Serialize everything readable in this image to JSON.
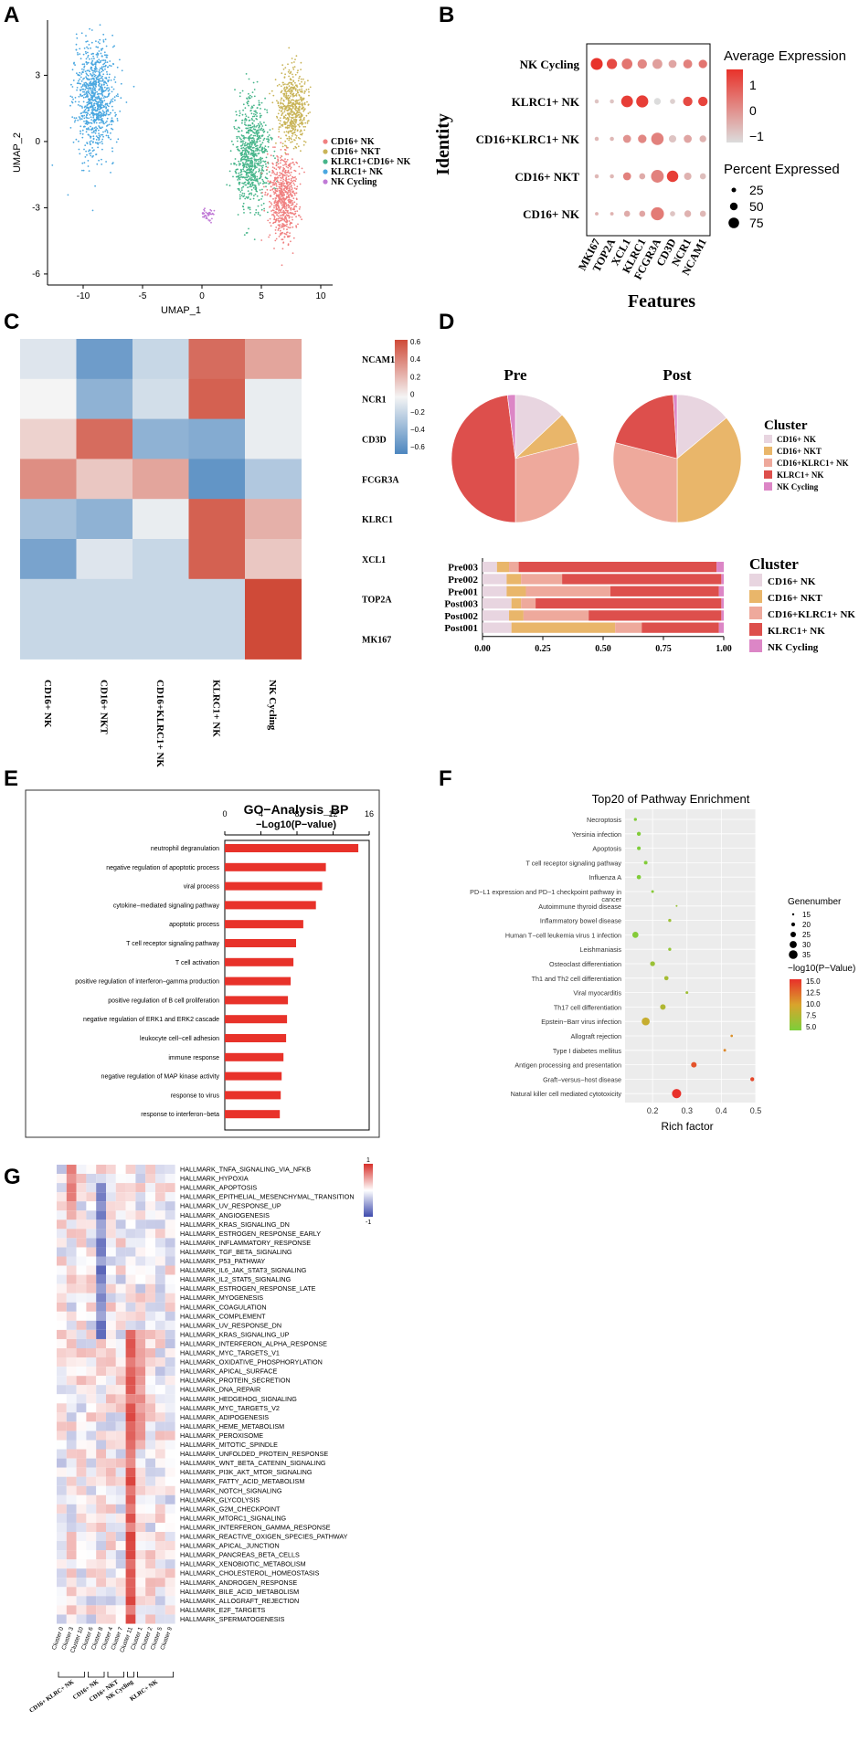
{
  "panel_letters": [
    "A",
    "B",
    "C",
    "D",
    "E",
    "F",
    "G"
  ],
  "colors": {
    "nk_cd16": "#f08080",
    "nkt_cd16": "#c9b458",
    "klrc1_cd16": "#46b58a",
    "klrc1": "#4aa7e0",
    "cycling": "#c07ad6",
    "pie_cd16nk": "#e8d5e0",
    "pie_nkt": "#e9b66a",
    "pie_cd16klrc1": "#eea99c",
    "pie_klrc1": "#dd4f4c",
    "pie_cycling": "#dc86c6",
    "bar_e": "#e8322a",
    "heat_high": "#cf4a38",
    "heat_low": "#4c86bf"
  },
  "chart_data": [
    {
      "panel": "A",
      "type": "scatter",
      "title": "",
      "xlabel": "UMAP_1",
      "ylabel": "UMAP_2",
      "xticks": [
        -10,
        -5,
        0,
        5,
        10
      ],
      "yticks": [
        -6,
        -3,
        0,
        3
      ],
      "xlim": [
        -13,
        11
      ],
      "ylim": [
        -6.5,
        5.5
      ],
      "legend": [
        "CD16+ NK",
        "CD16+ NKT",
        "KLRC1+CD16+ NK",
        "KLRC1+ NK",
        "NK Cycling"
      ],
      "clusters": [
        {
          "name": "KLRC1+ NK",
          "center": [
            -9,
            2.0
          ],
          "spread": [
            1.4,
            2.3
          ]
        },
        {
          "name": "KLRC1+CD16+ NK",
          "center": [
            4.2,
            -0.6
          ],
          "spread": [
            1.2,
            2.2
          ]
        },
        {
          "name": "CD16+ NKT",
          "center": [
            7.6,
            1.5
          ],
          "spread": [
            1.0,
            1.5
          ]
        },
        {
          "name": "CD16+ NK",
          "center": [
            6.8,
            -2.6
          ],
          "spread": [
            1.0,
            1.8
          ]
        },
        {
          "name": "NK Cycling",
          "center": [
            0.5,
            -3.3
          ],
          "spread": [
            0.4,
            0.25
          ]
        }
      ]
    },
    {
      "panel": "B",
      "type": "scatter",
      "subtype": "dotplot",
      "xlabel": "Features",
      "ylabel": "Identity",
      "features": [
        "MKI67",
        "TOP2A",
        "XCL1",
        "KLRC1",
        "FCGR3A",
        "CD3D",
        "NCR1",
        "NCAM1"
      ],
      "identities": [
        "NK Cycling",
        "KLRC1+ NK",
        "CD16+KLRC1+ NK",
        "CD16+ NKT",
        "CD16+ NK"
      ],
      "expression": [
        [
          1.6,
          1.2,
          0.5,
          0.2,
          -0.2,
          -0.3,
          0.3,
          0.5
        ],
        [
          -0.8,
          -0.8,
          1.4,
          1.4,
          -1.2,
          -1.0,
          1.2,
          1.3
        ],
        [
          -0.6,
          -0.6,
          0.0,
          0.2,
          0.3,
          -0.8,
          -0.3,
          -0.5
        ],
        [
          -0.6,
          -0.6,
          0.3,
          -0.4,
          0.3,
          1.4,
          -0.5,
          -0.7
        ],
        [
          -0.5,
          -0.5,
          -0.4,
          -0.3,
          0.4,
          -0.8,
          -0.5,
          -0.6
        ]
      ],
      "pct": [
        [
          78,
          55,
          60,
          45,
          50,
          30,
          40,
          35
        ],
        [
          5,
          5,
          75,
          80,
          20,
          10,
          45,
          45
        ],
        [
          5,
          5,
          30,
          35,
          85,
          25,
          30,
          20
        ],
        [
          5,
          5,
          30,
          15,
          90,
          70,
          25,
          15
        ],
        [
          3,
          3,
          15,
          15,
          95,
          10,
          20,
          15
        ]
      ],
      "color_legend_title": "Average Expression",
      "color_ticks": [
        "1",
        "0",
        "−1"
      ],
      "size_legend_title": "Percent Expressed",
      "size_ticks": [
        "25",
        "50",
        "75"
      ]
    },
    {
      "panel": "C",
      "type": "heatmap",
      "columns": [
        "CD16+ NK",
        "CD16+ NKT",
        "CD16+KLRC1+ NK",
        "KLRC1+ NK",
        "NK Cycling"
      ],
      "rows": [
        "NCAM1",
        "NCR1",
        "CD3D",
        "FCGR3A",
        "KLRC1",
        "XCL1",
        "TOP2A",
        "MK167"
      ],
      "values": [
        [
          -0.1,
          -0.6,
          -0.2,
          0.6,
          0.35
        ],
        [
          0.0,
          -0.45,
          -0.15,
          0.65,
          -0.05
        ],
        [
          0.15,
          0.6,
          -0.45,
          -0.5,
          -0.05
        ],
        [
          0.45,
          0.2,
          0.35,
          -0.65,
          -0.3
        ],
        [
          -0.35,
          -0.45,
          -0.05,
          0.65,
          0.3
        ],
        [
          -0.55,
          -0.1,
          -0.2,
          0.65,
          0.2
        ],
        [
          -0.2,
          -0.2,
          -0.2,
          -0.2,
          0.75
        ],
        [
          -0.2,
          -0.2,
          -0.2,
          -0.2,
          0.75
        ]
      ],
      "scale_ticks": [
        "0.6",
        "0.4",
        "0.2",
        "0",
        "−0.2",
        "−0.4",
        "−0.6"
      ]
    },
    {
      "panel": "D-pie",
      "type": "pie",
      "title": "Pre / Post",
      "legend_title": "Cluster",
      "series": [
        {
          "name": "Pre",
          "labels": [
            "CD16+ NK",
            "CD16+ NKT",
            "CD16+KLRC1+ NK",
            "KLRC1+ NK",
            "NK Cycling"
          ],
          "values": [
            0.13,
            0.08,
            0.29,
            0.48,
            0.02
          ]
        },
        {
          "name": "Post",
          "labels": [
            "CD16+ NK",
            "CD16+ NKT",
            "CD16+KLRC1+ NK",
            "KLRC1+ NK",
            "NK Cycling"
          ],
          "values": [
            0.14,
            0.36,
            0.29,
            0.2,
            0.01
          ]
        }
      ],
      "legend": [
        "CD16+ NK",
        "CD16+ NKT",
        "CD16+KLRC1+ NK",
        "KLRC1+ NK",
        "NK Cycling"
      ]
    },
    {
      "panel": "D-bar",
      "type": "bar",
      "orientation": "horizontal-stacked",
      "legend_title": "Cluster",
      "categories": [
        "Pre003",
        "Pre002",
        "Pre001",
        "Post003",
        "Post002",
        "Post001"
      ],
      "xticks": [
        "0.00",
        "0.25",
        "0.50",
        "0.75",
        "1.00"
      ],
      "series": [
        {
          "name": "CD16+ NK",
          "values": [
            0.06,
            0.1,
            0.1,
            0.12,
            0.11,
            0.12
          ]
        },
        {
          "name": "CD16+ NKT",
          "values": [
            0.05,
            0.06,
            0.08,
            0.04,
            0.06,
            0.43
          ]
        },
        {
          "name": "CD16+KLRC1+ NK",
          "values": [
            0.04,
            0.17,
            0.35,
            0.06,
            0.27,
            0.11
          ]
        },
        {
          "name": "KLRC1+ NK",
          "values": [
            0.82,
            0.66,
            0.45,
            0.77,
            0.55,
            0.32
          ]
        },
        {
          "name": "NK Cycling",
          "values": [
            0.03,
            0.01,
            0.02,
            0.01,
            0.01,
            0.02
          ]
        }
      ],
      "legend": [
        "CD16+ NK",
        "CD16+ NKT",
        "CD16+KLRC1+ NK",
        "KLRC1+ NK",
        "NK Cycling"
      ]
    },
    {
      "panel": "E",
      "type": "bar",
      "orientation": "horizontal",
      "title": "GO−Analysis_BP",
      "xlabel": "−Log10(P−value)",
      "xticks": [
        "0",
        "4",
        "8",
        "12",
        "16"
      ],
      "xlim": [
        0,
        16
      ],
      "categories": [
        "neutrophil degranulation",
        "negative regulation of apoptotic process",
        "viral process",
        "cytokine−mediated signaling pathway",
        "apoptotic process",
        "T cell receptor signaling pathway",
        "T cell activation",
        "positive regulation of interferon−gamma production",
        "positive regulation of B cell proliferation",
        "negative regulation of ERK1 and ERK2 cascade",
        "leukocyte cell−cell adhesion",
        "immune response",
        "negative regulation of MAP kinase activity",
        "response to virus",
        "response to interferon−beta"
      ],
      "values": [
        14.8,
        11.2,
        10.8,
        10.1,
        8.7,
        7.9,
        7.6,
        7.3,
        7.0,
        6.9,
        6.8,
        6.5,
        6.3,
        6.2,
        6.1
      ]
    },
    {
      "panel": "F",
      "type": "scatter",
      "subtype": "bubble",
      "title": "Top20 of Pathway Enrichment",
      "xlabel": "Rich factor",
      "xticks": [
        "0.2",
        "0.3",
        "0.4",
        "0.5"
      ],
      "xlim": [
        0.12,
        0.5
      ],
      "categories": [
        "Necroptosis",
        "Yersinia infection",
        "Apoptosis",
        "T cell receptor signaling pathway",
        "Influenza A",
        "PD−L1 expression and PD−1 checkpoint pathway in",
        "Autoimmune thyroid disease",
        "Inflammatory bowel disease",
        "Human T−cell leukemia virus 1 infection",
        "Leishmaniasis",
        "Osteoclast differentiation",
        "Th1 and Th2 cell differentiation",
        "Viral myocarditis",
        "Th17 cell differentiation",
        "Epstein−Barr virus infection",
        "Allograft rejection",
        "Type I diabetes mellitus",
        "Antigen processing and presentation",
        "Graft−versus−host disease",
        "Natural killer cell mediated cytotoxicity"
      ],
      "category_note": "cancer",
      "rich_factor": [
        0.15,
        0.16,
        0.16,
        0.18,
        0.16,
        0.2,
        0.27,
        0.25,
        0.15,
        0.25,
        0.2,
        0.24,
        0.3,
        0.23,
        0.18,
        0.43,
        0.41,
        0.32,
        0.49,
        0.27
      ],
      "gene_number": [
        14,
        17,
        16,
        16,
        18,
        13,
        10,
        14,
        24,
        14,
        20,
        18,
        13,
        22,
        30,
        12,
        13,
        22,
        17,
        34
      ],
      "neg_log10_p": [
        5.2,
        5.3,
        5.1,
        5.3,
        5.2,
        5.6,
        6.5,
        6.8,
        5.5,
        6.3,
        6.6,
        7.2,
        6.9,
        7.8,
        9.0,
        10.8,
        11.2,
        13.5,
        14.0,
        15.8
      ],
      "size_legend_title": "Genenumber",
      "size_ticks": [
        "15",
        "20",
        "25",
        "30",
        "35"
      ],
      "color_legend_title": "−log10(P−Value)",
      "color_ticks": [
        "15.0",
        "12.5",
        "10.0",
        "7.5",
        "5.0"
      ]
    },
    {
      "panel": "G",
      "type": "heatmap",
      "columns": [
        "Cluster 0",
        "Cluster 3",
        "Cluster 10",
        "Cluster 6",
        "Cluster 8",
        "Cluster 4",
        "Cluster 7",
        "Cluster 11",
        "Cluster 1",
        "Cluster 2",
        "Cluster 5",
        "Cluster 9"
      ],
      "column_groups": [
        {
          "name": "CD16+ KLRC+ NK",
          "cols": [
            "Cluster 0",
            "Cluster 3",
            "Cluster 10"
          ]
        },
        {
          "name": "CD16+ NK",
          "cols": [
            "Cluster 6",
            "Cluster 8"
          ]
        },
        {
          "name": "CD16+ NKT",
          "cols": [
            "Cluster 4",
            "Cluster 7"
          ]
        },
        {
          "name": "NK Cycling",
          "cols": [
            "Cluster 11"
          ]
        },
        {
          "name": "KLRC+ NK",
          "cols": [
            "Cluster 1",
            "Cluster 2",
            "Cluster 5",
            "Cluster 9"
          ]
        }
      ],
      "rows": [
        "HALLMARK_TNFA_SIGNALING_VIA_NFKB",
        "HALLMARK_HYPOXIA",
        "HALLMARK_APOPTOSIS",
        "HALLMARK_EPITHELIAL_MESENCHYMAL_TRANSITION",
        "HALLMARK_UV_RESPONSE_UP",
        "HALLMARK_ANGIOGENESIS",
        "HALLMARK_KRAS_SIGNALING_DN",
        "HALLMARK_ESTROGEN_RESPONSE_EARLY",
        "HALLMARK_INFLAMMATORY_RESPONSE",
        "HALLMARK_TGF_BETA_SIGNALING",
        "HALLMARK_P53_PATHWAY",
        "HALLMARK_IL6_JAK_STAT3_SIGNALING",
        "HALLMARK_IL2_STAT5_SIGNALING",
        "HALLMARK_ESTROGEN_RESPONSE_LATE",
        "HALLMARK_MYOGENESIS",
        "HALLMARK_COAGULATION",
        "HALLMARK_COMPLEMENT",
        "HALLMARK_UV_RESPONSE_DN",
        "HALLMARK_KRAS_SIGNALING_UP",
        "HALLMARK_INTERFERON_ALPHA_RESPONSE",
        "HALLMARK_MYC_TARGETS_V1",
        "HALLMARK_OXIDATIVE_PHOSPHORYLATION",
        "HALLMARK_APICAL_SURFACE",
        "HALLMARK_PROTEIN_SECRETION",
        "HALLMARK_DNA_REPAIR",
        "HALLMARK_HEDGEHOG_SIGNALING",
        "HALLMARK_MYC_TARGETS_V2",
        "HALLMARK_ADIPOGENESIS",
        "HALLMARK_HEME_METABOLISM",
        "HALLMARK_PEROXISOME",
        "HALLMARK_MITOTIC_SPINDLE",
        "HALLMARK_UNFOLDED_PROTEIN_RESPONSE",
        "HALLMARK_WNT_BETA_CATENIN_SIGNALING",
        "HALLMARK_PI3K_AKT_MTOR_SIGNALING",
        "HALLMARK_FATTY_ACID_METABOLISM",
        "HALLMARK_NOTCH_SIGNALING",
        "HALLMARK_GLYCOLYSIS",
        "HALLMARK_G2M_CHECKPOINT",
        "HALLMARK_MTORC1_SIGNALING",
        "HALLMARK_INTERFERON_GAMMA_RESPONSE",
        "HALLMARK_REACTIVE_OXIGEN_SPECIES_PATHWAY",
        "HALLMARK_APICAL_JUNCTION",
        "HALLMARK_PANCREAS_BETA_CELLS",
        "HALLMARK_XENOBIOTIC_METABOLISM",
        "HALLMARK_CHOLESTEROL_HOMEOSTASIS",
        "HALLMARK_ANDROGEN_RESPONSE",
        "HALLMARK_BILE_ACID_METABOLISM",
        "HALLMARK_ALLOGRAFT_REJECTION",
        "HALLMARK_E2F_TARGETS",
        "HALLMARK_SPERMATOGENESIS"
      ],
      "values_note": "values in [-1, 1]; a deterministic pseudo-pattern approximates the image",
      "scale_ticks": [
        "1",
        "-1"
      ]
    }
  ]
}
